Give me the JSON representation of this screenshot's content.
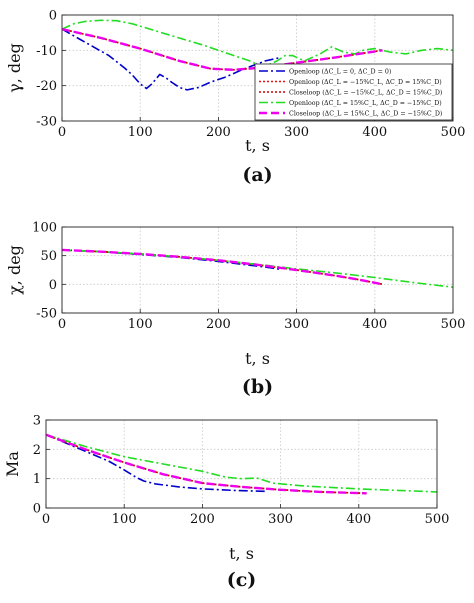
{
  "chart_data": [
    {
      "type": "line",
      "caption": "(a)",
      "xlabel": "t, s",
      "ylabel": "γ, deg",
      "xlim": [
        0,
        500
      ],
      "ylim": [
        -30,
        0
      ],
      "xticks": [
        "0",
        "100",
        "200",
        "300",
        "400",
        "500"
      ],
      "yticks": [
        "0",
        "-10",
        "-20",
        "-30"
      ],
      "grid": true,
      "legend_position": "lower-right",
      "series": [
        {
          "name": "Openloop (ΔC_L = 0, ΔC_D = 0)",
          "color": "#0000cc",
          "dash": "9,3,2,3",
          "x": [
            0,
            20,
            40,
            60,
            80,
            90,
            100,
            108,
            115,
            125,
            133,
            140,
            150,
            160,
            175,
            190,
            210,
            230,
            250,
            260,
            270,
            280
          ],
          "y": [
            -4,
            -6.5,
            -9,
            -11.5,
            -15,
            -17,
            -19.5,
            -20.8,
            -19.5,
            -16.8,
            -17.8,
            -19,
            -20.5,
            -21.2,
            -20.5,
            -19,
            -17.5,
            -15.5,
            -13.8,
            -13,
            -12.5,
            -12
          ]
        },
        {
          "name": "Openloop (ΔC_L = −15%C_L, ΔC_D = 15%C_D)",
          "color": "#ee1111",
          "dash": "2,2",
          "x": [
            0,
            50,
            100,
            150,
            190,
            220,
            260,
            300,
            350,
            410
          ],
          "y": [
            -4,
            -6.5,
            -9.5,
            -13,
            -15.2,
            -15.5,
            -14.8,
            -13.5,
            -12,
            -10
          ]
        },
        {
          "name": "Closeloop (ΔC_L = −15%C_L, ΔC_D = 15%C_D)",
          "color": "#cc0000",
          "dash": "2,2",
          "x": [
            0,
            50,
            100,
            150,
            190,
            220,
            260,
            300,
            350,
            410
          ],
          "y": [
            -4,
            -6.5,
            -9.5,
            -13,
            -15.2,
            -15.5,
            -14.8,
            -13.5,
            -12,
            -10
          ]
        },
        {
          "name": "Openloop (ΔC_L = 15%C_L, ΔC_D = −15%C_D)",
          "color": "#22dd22",
          "dash": "9,3,2,3",
          "x": [
            0,
            15,
            30,
            50,
            70,
            90,
            120,
            150,
            180,
            200,
            220,
            240,
            250,
            260,
            275,
            285,
            295,
            310,
            330,
            345,
            360,
            375,
            385,
            400,
            420,
            440,
            460,
            480,
            500
          ],
          "y": [
            -4,
            -2.5,
            -1.8,
            -1.5,
            -1.6,
            -2.5,
            -4.5,
            -6.5,
            -8.5,
            -10,
            -11.5,
            -13,
            -14,
            -14.5,
            -13,
            -11.5,
            -11.5,
            -13,
            -11,
            -9,
            -10.5,
            -11,
            -10,
            -9.5,
            -10.5,
            -11,
            -10,
            -9.5,
            -10
          ]
        },
        {
          "name": "Closeloop (ΔC_L = 15%C_L, ΔC_D = −15%C_D)",
          "color": "#ee00ee",
          "dash": "8,4",
          "x": [
            0,
            50,
            100,
            150,
            190,
            220,
            260,
            300,
            350,
            410
          ],
          "y": [
            -4,
            -6.5,
            -9.5,
            -13,
            -15.2,
            -15.5,
            -14.8,
            -13.5,
            -12,
            -10
          ]
        }
      ]
    },
    {
      "type": "line",
      "caption": "(b)",
      "xlabel": "t, s",
      "ylabel": "χ, deg",
      "xlim": [
        0,
        500
      ],
      "ylim": [
        -50,
        100
      ],
      "xticks": [
        "0",
        "100",
        "200",
        "300",
        "400",
        "500"
      ],
      "yticks": [
        "100",
        "50",
        "0",
        "-50"
      ],
      "grid": true,
      "series": [
        {
          "name": "Openloop (ΔC_L = 0, ΔC_D = 0)",
          "color": "#0000cc",
          "dash": "9,3,2,3",
          "x": [
            0,
            50,
            100,
            150,
            200,
            230,
            260,
            280
          ],
          "y": [
            60,
            57,
            52,
            47,
            40,
            35,
            30,
            26
          ]
        },
        {
          "name": "Openloop (ΔC_L = −15%C_L, ΔC_D = 15%C_D)",
          "color": "#ee1111",
          "dash": "2,2",
          "x": [
            0,
            50,
            100,
            150,
            200,
            250,
            300,
            350,
            380,
            410
          ],
          "y": [
            60,
            57,
            53,
            48,
            42,
            34,
            25,
            15,
            8,
            0
          ]
        },
        {
          "name": "Closeloop (ΔC_L = −15%C_L, ΔC_D = 15%C_D)",
          "color": "#cc0000",
          "dash": "2,2",
          "x": [
            0,
            50,
            100,
            150,
            200,
            250,
            300,
            350,
            380,
            410
          ],
          "y": [
            60,
            57,
            53,
            48,
            42,
            34,
            25,
            15,
            8,
            0
          ]
        },
        {
          "name": "Openloop (ΔC_L = 15%C_L, ΔC_D = −15%C_D)",
          "color": "#22dd22",
          "dash": "9,3,2,3",
          "x": [
            0,
            50,
            100,
            150,
            200,
            250,
            300,
            350,
            400,
            450,
            500
          ],
          "y": [
            60,
            57,
            53,
            48,
            42,
            35,
            27,
            20,
            12,
            3,
            -5
          ]
        },
        {
          "name": "Closeloop (ΔC_L = 15%C_L, ΔC_D = −15%C_D)",
          "color": "#ee00ee",
          "dash": "8,4",
          "x": [
            0,
            50,
            100,
            150,
            200,
            250,
            300,
            350,
            380,
            410
          ],
          "y": [
            60,
            57,
            53,
            48,
            42,
            34,
            25,
            15,
            8,
            0
          ]
        }
      ]
    },
    {
      "type": "line",
      "caption": "(c)",
      "xlabel": "t, s",
      "ylabel": "Ma",
      "xlim": [
        0,
        500
      ],
      "ylim": [
        0,
        3
      ],
      "xticks": [
        "0",
        "100",
        "200",
        "300",
        "400",
        "500"
      ],
      "yticks": [
        "3",
        "2",
        "1",
        "0"
      ],
      "grid": true,
      "series": [
        {
          "name": "Openloop (ΔC_L = 0, ΔC_D = 0)",
          "color": "#0000cc",
          "dash": "9,3,2,3",
          "x": [
            0,
            40,
            80,
            100,
            115,
            125,
            140,
            170,
            200,
            240,
            280
          ],
          "y": [
            2.5,
            2.05,
            1.6,
            1.3,
            1.05,
            0.92,
            0.82,
            0.72,
            0.65,
            0.6,
            0.57
          ]
        },
        {
          "name": "Openloop (ΔC_L = −15%C_L, ΔC_D = 15%C_D)",
          "color": "#ee1111",
          "dash": "2,2",
          "x": [
            0,
            50,
            100,
            150,
            200,
            250,
            300,
            350,
            410
          ],
          "y": [
            2.5,
            2.0,
            1.55,
            1.15,
            0.85,
            0.72,
            0.62,
            0.55,
            0.5
          ]
        },
        {
          "name": "Closeloop (ΔC_L = −15%C_L, ΔC_D = 15%C_D)",
          "color": "#cc0000",
          "dash": "2,2",
          "x": [
            0,
            50,
            100,
            150,
            200,
            250,
            300,
            350,
            410
          ],
          "y": [
            2.5,
            2.0,
            1.55,
            1.15,
            0.85,
            0.72,
            0.62,
            0.55,
            0.5
          ]
        },
        {
          "name": "Openloop (ΔC_L = 15%C_L, ΔC_D = −15%C_D)",
          "color": "#22dd22",
          "dash": "9,3,2,3",
          "x": [
            0,
            50,
            100,
            150,
            200,
            230,
            250,
            270,
            290,
            330,
            400,
            450,
            500
          ],
          "y": [
            2.5,
            2.1,
            1.75,
            1.5,
            1.25,
            1.05,
            1.0,
            1.02,
            0.85,
            0.75,
            0.65,
            0.6,
            0.55
          ]
        },
        {
          "name": "Closeloop (ΔC_L = 15%C_L, ΔC_D = −15%C_D)",
          "color": "#ee00ee",
          "dash": "8,4",
          "x": [
            0,
            50,
            100,
            150,
            200,
            250,
            300,
            350,
            410
          ],
          "y": [
            2.5,
            2.0,
            1.55,
            1.15,
            0.85,
            0.72,
            0.62,
            0.55,
            0.5
          ]
        }
      ]
    }
  ]
}
